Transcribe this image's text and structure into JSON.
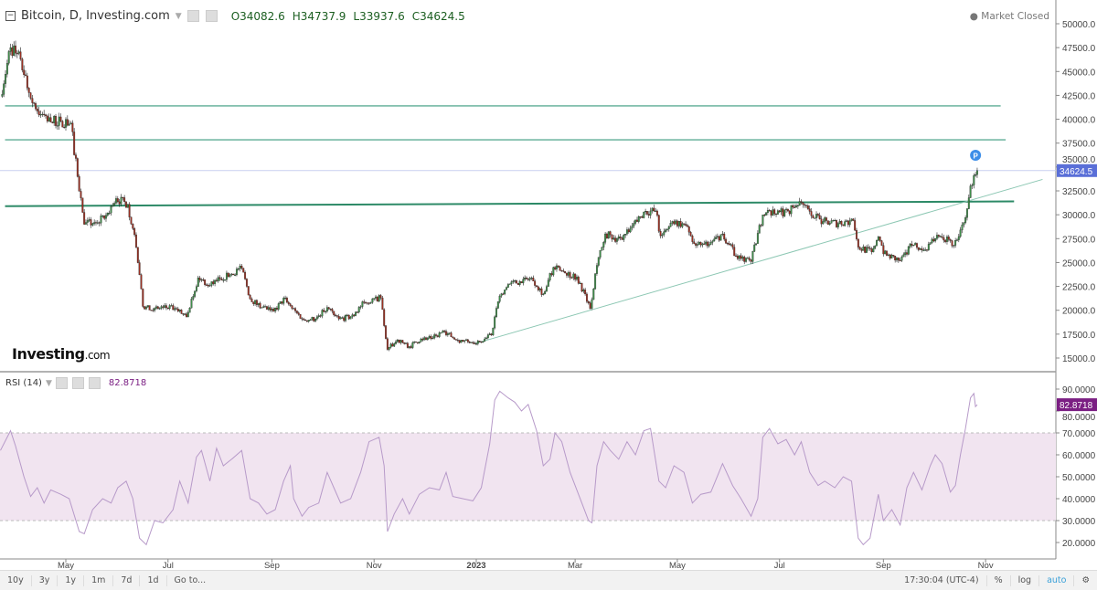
{
  "header": {
    "symbol_title": "Bitcoin, D, Investing.com",
    "open": "O34082.6",
    "high": "H34737.9",
    "low": "L33937.6",
    "close": "C34624.5",
    "market_status": "Market Closed"
  },
  "rsi_legend": {
    "title": "RSI (14)",
    "value": "82.8718"
  },
  "logo": {
    "main": "Investing",
    "suffix": ".com"
  },
  "bottom_bar": {
    "ranges": [
      "10y",
      "3y",
      "1y",
      "1m",
      "7d",
      "1d",
      "Go to..."
    ],
    "time": "17:30:04 (UTC-4)",
    "percent": "%",
    "log": "log",
    "auto": "auto",
    "settings_icon": "gear-icon"
  },
  "colors": {
    "up": "#3f8f4a",
    "down": "#9b3022",
    "rsi_line": "#b79ac9",
    "rsi_band": "#f1e4f0",
    "lines": "#3a9a7e",
    "last_price": "#5a6fd8",
    "rsi_label": "#7b1f83"
  },
  "chart_data": [
    {
      "type": "candlestick",
      "title": "Bitcoin, D, Investing.com",
      "ylim": [
        14000,
        51500
      ],
      "yticks": [
        "15000.0",
        "17500.0",
        "20000.0",
        "22500.0",
        "25000.0",
        "27500.0",
        "30000.0",
        "32500.0",
        "35000.0",
        "37500.0",
        "40000.0",
        "42500.0",
        "45000.0",
        "47500.0",
        "50000.0"
      ],
      "xticks": [
        [
          "2022-05-01",
          "May"
        ],
        [
          "2022-07-01",
          "Jul"
        ],
        [
          "2022-09-01",
          "Sep"
        ],
        [
          "2022-11-01",
          "Nov"
        ],
        [
          "2023-01-01",
          "2023"
        ],
        [
          "2023-03-01",
          "Mar"
        ],
        [
          "2023-05-01",
          "May"
        ],
        [
          "2023-07-01",
          "Jul"
        ],
        [
          "2023-09-01",
          "Sep"
        ],
        [
          "2023-11-01",
          "Nov"
        ]
      ],
      "last_price": 34624.5,
      "last_price_label": "34624.5",
      "marker_label": "P",
      "closes": [
        [
          "2022-03-23",
          42400
        ],
        [
          "2022-03-29",
          47500
        ],
        [
          "2022-04-04",
          46300
        ],
        [
          "2022-04-10",
          42200
        ],
        [
          "2022-04-16",
          40500
        ],
        [
          "2022-04-22",
          39700
        ],
        [
          "2022-04-28",
          39800
        ],
        [
          "2022-05-04",
          39600
        ],
        [
          "2022-05-08",
          34000
        ],
        [
          "2022-05-12",
          29000
        ],
        [
          "2022-05-18",
          29200
        ],
        [
          "2022-05-24",
          29600
        ],
        [
          "2022-05-31",
          31700
        ],
        [
          "2022-06-07",
          31100
        ],
        [
          "2022-06-12",
          26600
        ],
        [
          "2022-06-16",
          20400
        ],
        [
          "2022-06-22",
          20000
        ],
        [
          "2022-06-28",
          20300
        ],
        [
          "2022-07-05",
          20200
        ],
        [
          "2022-07-12",
          19300
        ],
        [
          "2022-07-19",
          23400
        ],
        [
          "2022-07-26",
          22600
        ],
        [
          "2022-08-01",
          23300
        ],
        [
          "2022-08-08",
          23800
        ],
        [
          "2022-08-14",
          24400
        ],
        [
          "2022-08-19",
          21200
        ],
        [
          "2022-08-26",
          20300
        ],
        [
          "2022-09-02",
          19900
        ],
        [
          "2022-09-09",
          21300
        ],
        [
          "2022-09-13",
          20200
        ],
        [
          "2022-09-20",
          19000
        ],
        [
          "2022-09-27",
          19100
        ],
        [
          "2022-10-04",
          20300
        ],
        [
          "2022-10-11",
          19100
        ],
        [
          "2022-10-18",
          19300
        ],
        [
          "2022-10-26",
          20800
        ],
        [
          "2022-11-05",
          21300
        ],
        [
          "2022-11-09",
          15900
        ],
        [
          "2022-11-15",
          16900
        ],
        [
          "2022-11-22",
          16200
        ],
        [
          "2022-11-29",
          17000
        ],
        [
          "2022-12-06",
          17100
        ],
        [
          "2022-12-13",
          17800
        ],
        [
          "2022-12-20",
          16900
        ],
        [
          "2022-12-27",
          16700
        ],
        [
          "2023-01-03",
          16700
        ],
        [
          "2023-01-10",
          17400
        ],
        [
          "2023-01-14",
          20900
        ],
        [
          "2023-01-20",
          22700
        ],
        [
          "2023-01-27",
          23000
        ],
        [
          "2023-02-03",
          23400
        ],
        [
          "2023-02-10",
          21700
        ],
        [
          "2023-02-16",
          24500
        ],
        [
          "2023-02-23",
          23900
        ],
        [
          "2023-03-02",
          23500
        ],
        [
          "2023-03-10",
          20200
        ],
        [
          "2023-03-14",
          24700
        ],
        [
          "2023-03-19",
          28000
        ],
        [
          "2023-03-26",
          27500
        ],
        [
          "2023-04-02",
          28200
        ],
        [
          "2023-04-11",
          30300
        ],
        [
          "2023-04-18",
          30400
        ],
        [
          "2023-04-21",
          27800
        ],
        [
          "2023-04-28",
          29300
        ],
        [
          "2023-05-06",
          28900
        ],
        [
          "2023-05-12",
          26800
        ],
        [
          "2023-05-20",
          26900
        ],
        [
          "2023-05-28",
          28000
        ],
        [
          "2023-06-05",
          25700
        ],
        [
          "2023-06-14",
          25100
        ],
        [
          "2023-06-21",
          30000
        ],
        [
          "2023-06-28",
          30100
        ],
        [
          "2023-07-06",
          30400
        ],
        [
          "2023-07-13",
          31400
        ],
        [
          "2023-07-20",
          29900
        ],
        [
          "2023-07-27",
          29300
        ],
        [
          "2023-08-05",
          29100
        ],
        [
          "2023-08-14",
          29400
        ],
        [
          "2023-08-17",
          26600
        ],
        [
          "2023-08-25",
          26100
        ],
        [
          "2023-08-29",
          27700
        ],
        [
          "2023-09-01",
          25900
        ],
        [
          "2023-09-11",
          25200
        ],
        [
          "2023-09-18",
          26800
        ],
        [
          "2023-09-25",
          26300
        ],
        [
          "2023-10-02",
          27500
        ],
        [
          "2023-10-10",
          27400
        ],
        [
          "2023-10-13",
          26800
        ],
        [
          "2023-10-17",
          28400
        ],
        [
          "2023-10-20",
          29700
        ],
        [
          "2023-10-23",
          33000
        ],
        [
          "2023-10-26",
          34200
        ],
        [
          "2023-10-27",
          34624.5
        ]
      ],
      "drawings": [
        {
          "type": "horizontal",
          "price": 41400,
          "from": "2022-03-23",
          "to": "2023-11-10"
        },
        {
          "type": "horizontal",
          "price": 37850,
          "from": "2022-03-23",
          "to": "2023-11-13"
        },
        {
          "type": "trendline",
          "from": [
            "2022-03-23",
            30900
          ],
          "to": [
            "2023-11-18",
            31400
          ],
          "thick": true
        },
        {
          "type": "trendline",
          "from": [
            "2022-12-31",
            16500
          ],
          "to": [
            "2023-12-05",
            33700
          ],
          "thick": false
        }
      ]
    },
    {
      "type": "line",
      "title": "RSI (14)",
      "ylim": [
        17,
        93
      ],
      "yticks": [
        "20.0000",
        "30.0000",
        "40.0000",
        "50.0000",
        "60.0000",
        "70.0000",
        "80.0000",
        "90.0000"
      ],
      "band": [
        30,
        70
      ],
      "last_value": 82.8718,
      "last_value_label": "82.8718",
      "values": [
        [
          "2022-03-23",
          62
        ],
        [
          "2022-03-29",
          71
        ],
        [
          "2022-04-01",
          64
        ],
        [
          "2022-04-06",
          50
        ],
        [
          "2022-04-10",
          41
        ],
        [
          "2022-04-14",
          45
        ],
        [
          "2022-04-18",
          38
        ],
        [
          "2022-04-22",
          44
        ],
        [
          "2022-04-28",
          42
        ],
        [
          "2022-05-03",
          40
        ],
        [
          "2022-05-09",
          25
        ],
        [
          "2022-05-12",
          24
        ],
        [
          "2022-05-17",
          35
        ],
        [
          "2022-05-23",
          40
        ],
        [
          "2022-05-28",
          38
        ],
        [
          "2022-06-01",
          45
        ],
        [
          "2022-06-06",
          48
        ],
        [
          "2022-06-10",
          40
        ],
        [
          "2022-06-14",
          22
        ],
        [
          "2022-06-18",
          19
        ],
        [
          "2022-06-23",
          30
        ],
        [
          "2022-06-28",
          29
        ],
        [
          "2022-07-04",
          35
        ],
        [
          "2022-07-08",
          48
        ],
        [
          "2022-07-13",
          38
        ],
        [
          "2022-07-18",
          59
        ],
        [
          "2022-07-21",
          62
        ],
        [
          "2022-07-26",
          48
        ],
        [
          "2022-07-30",
          63
        ],
        [
          "2022-08-03",
          55
        ],
        [
          "2022-08-08",
          58
        ],
        [
          "2022-08-14",
          62
        ],
        [
          "2022-08-19",
          40
        ],
        [
          "2022-08-24",
          38
        ],
        [
          "2022-08-29",
          33
        ],
        [
          "2022-09-03",
          35
        ],
        [
          "2022-09-08",
          48
        ],
        [
          "2022-09-12",
          55
        ],
        [
          "2022-09-14",
          40
        ],
        [
          "2022-09-19",
          32
        ],
        [
          "2022-09-23",
          36
        ],
        [
          "2022-09-29",
          38
        ],
        [
          "2022-10-04",
          52
        ],
        [
          "2022-10-08",
          45
        ],
        [
          "2022-10-12",
          38
        ],
        [
          "2022-10-18",
          40
        ],
        [
          "2022-10-24",
          52
        ],
        [
          "2022-10-29",
          66
        ],
        [
          "2022-11-04",
          68
        ],
        [
          "2022-11-07",
          55
        ],
        [
          "2022-11-09",
          25
        ],
        [
          "2022-11-13",
          33
        ],
        [
          "2022-11-18",
          40
        ],
        [
          "2022-11-22",
          33
        ],
        [
          "2022-11-28",
          42
        ],
        [
          "2022-12-04",
          45
        ],
        [
          "2022-12-10",
          44
        ],
        [
          "2022-12-14",
          52
        ],
        [
          "2022-12-18",
          41
        ],
        [
          "2022-12-24",
          40
        ],
        [
          "2022-12-30",
          39
        ],
        [
          "2023-01-04",
          45
        ],
        [
          "2023-01-09",
          65
        ],
        [
          "2023-01-12",
          85
        ],
        [
          "2023-01-15",
          89
        ],
        [
          "2023-01-20",
          86
        ],
        [
          "2023-01-24",
          84
        ],
        [
          "2023-01-28",
          80
        ],
        [
          "2023-02-01",
          83
        ],
        [
          "2023-02-06",
          71
        ],
        [
          "2023-02-10",
          55
        ],
        [
          "2023-02-14",
          58
        ],
        [
          "2023-02-17",
          70
        ],
        [
          "2023-02-21",
          66
        ],
        [
          "2023-02-26",
          52
        ],
        [
          "2023-03-03",
          42
        ],
        [
          "2023-03-09",
          30
        ],
        [
          "2023-03-11",
          29
        ],
        [
          "2023-03-14",
          55
        ],
        [
          "2023-03-18",
          66
        ],
        [
          "2023-03-22",
          62
        ],
        [
          "2023-03-27",
          58
        ],
        [
          "2023-04-01",
          66
        ],
        [
          "2023-04-06",
          60
        ],
        [
          "2023-04-11",
          71
        ],
        [
          "2023-04-15",
          72
        ],
        [
          "2023-04-20",
          48
        ],
        [
          "2023-04-24",
          45
        ],
        [
          "2023-04-29",
          55
        ],
        [
          "2023-05-05",
          52
        ],
        [
          "2023-05-10",
          38
        ],
        [
          "2023-05-15",
          42
        ],
        [
          "2023-05-21",
          43
        ],
        [
          "2023-05-28",
          56
        ],
        [
          "2023-06-03",
          46
        ],
        [
          "2023-06-08",
          40
        ],
        [
          "2023-06-14",
          32
        ],
        [
          "2023-06-18",
          40
        ],
        [
          "2023-06-21",
          68
        ],
        [
          "2023-06-25",
          72
        ],
        [
          "2023-06-30",
          65
        ],
        [
          "2023-07-05",
          67
        ],
        [
          "2023-07-10",
          60
        ],
        [
          "2023-07-14",
          66
        ],
        [
          "2023-07-19",
          52
        ],
        [
          "2023-07-24",
          46
        ],
        [
          "2023-07-28",
          48
        ],
        [
          "2023-08-03",
          45
        ],
        [
          "2023-08-08",
          50
        ],
        [
          "2023-08-13",
          48
        ],
        [
          "2023-08-17",
          22
        ],
        [
          "2023-08-20",
          19
        ],
        [
          "2023-08-24",
          22
        ],
        [
          "2023-08-29",
          42
        ],
        [
          "2023-09-01",
          30
        ],
        [
          "2023-09-06",
          35
        ],
        [
          "2023-09-11",
          28
        ],
        [
          "2023-09-15",
          45
        ],
        [
          "2023-09-19",
          52
        ],
        [
          "2023-09-24",
          44
        ],
        [
          "2023-09-29",
          55
        ],
        [
          "2023-10-02",
          60
        ],
        [
          "2023-10-06",
          56
        ],
        [
          "2023-10-11",
          43
        ],
        [
          "2023-10-14",
          46
        ],
        [
          "2023-10-17",
          60
        ],
        [
          "2023-10-20",
          72
        ],
        [
          "2023-10-23",
          86
        ],
        [
          "2023-10-25",
          88
        ],
        [
          "2023-10-26",
          82
        ],
        [
          "2023-10-27",
          82.8718
        ]
      ]
    }
  ]
}
